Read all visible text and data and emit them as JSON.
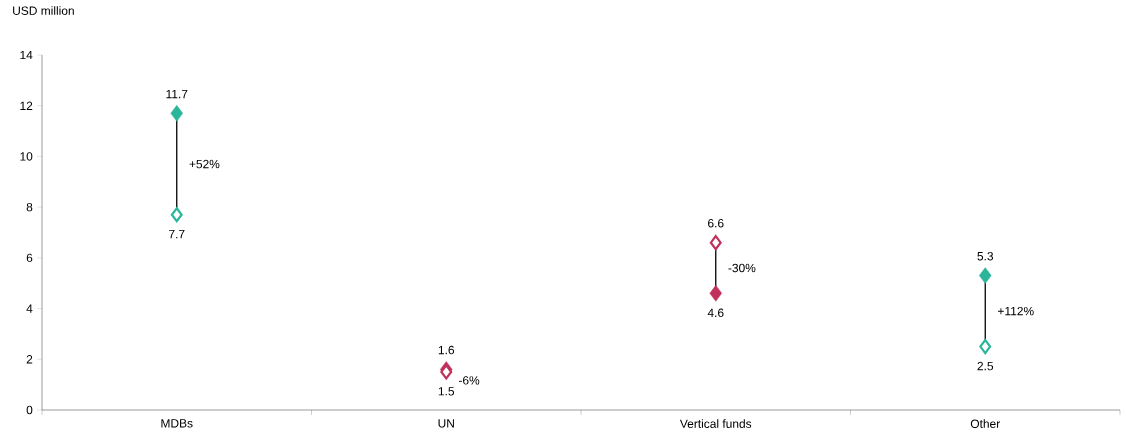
{
  "chart_data": {
    "type": "scatter",
    "ylabel": "USD million",
    "categories": [
      "MDBs",
      "UN",
      "Vertical funds",
      "Other"
    ],
    "series": [
      {
        "values": [
          7.7,
          1.5,
          6.6,
          2.5
        ],
        "colors": [
          "#2bb59a",
          "#c0305a",
          "#c0305a",
          "#2bb59a"
        ]
      },
      {
        "values": [
          11.7,
          1.6,
          4.6,
          5.3
        ],
        "colors": [
          "#2bb59a",
          "#c0305a",
          "#c0305a",
          "#2bb59a"
        ]
      }
    ],
    "marker": "diamond",
    "data_labels": true,
    "ylim": [
      0,
      14
    ],
    "yticks": [
      0,
      2,
      4,
      6,
      8,
      10,
      12,
      14
    ],
    "annotations": [
      "+52%",
      "-6%",
      "-30%",
      "+112%"
    ]
  }
}
